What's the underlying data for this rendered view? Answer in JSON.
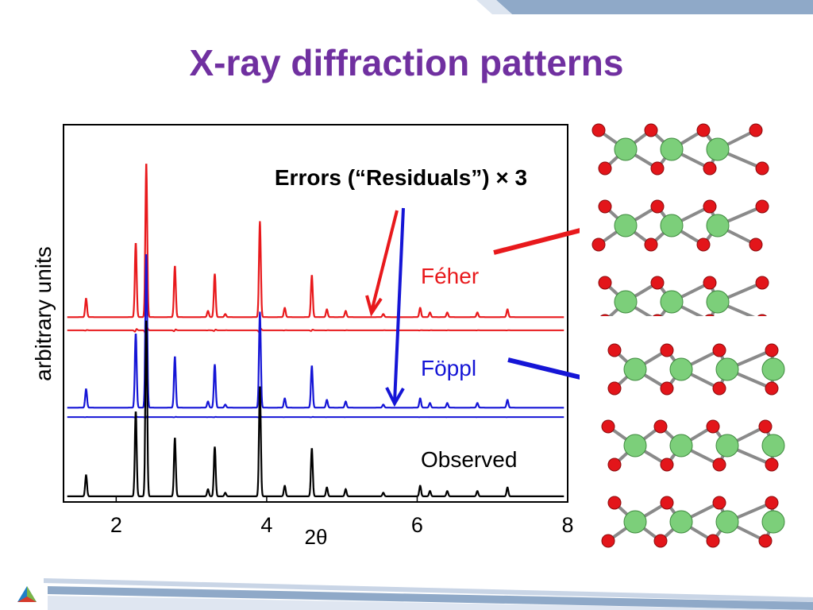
{
  "slide": {
    "title": "X-ray diffraction patterns"
  },
  "chart_data": {
    "type": "line",
    "title": "",
    "xlabel": "2θ",
    "ylabel": "arbitrary units",
    "xlim": [
      1.3,
      8
    ],
    "ylim": [
      0,
      100
    ],
    "xticks": [
      2,
      4,
      6,
      8
    ],
    "grid": false,
    "annotation": "Errors (“Residuals”) × 3",
    "peaks": [
      {
        "x": 1.6,
        "h": 0.12
      },
      {
        "x": 2.26,
        "h": 0.48
      },
      {
        "x": 2.4,
        "h": 1.0
      },
      {
        "x": 2.78,
        "h": 0.33
      },
      {
        "x": 3.22,
        "h": 0.04
      },
      {
        "x": 3.31,
        "h": 0.28
      },
      {
        "x": 3.45,
        "h": 0.02
      },
      {
        "x": 3.91,
        "h": 0.62
      },
      {
        "x": 4.24,
        "h": 0.06
      },
      {
        "x": 4.6,
        "h": 0.27
      },
      {
        "x": 4.8,
        "h": 0.05
      },
      {
        "x": 5.05,
        "h": 0.04
      },
      {
        "x": 5.55,
        "h": 0.02
      },
      {
        "x": 6.04,
        "h": 0.06
      },
      {
        "x": 6.17,
        "h": 0.03
      },
      {
        "x": 6.4,
        "h": 0.03
      },
      {
        "x": 6.8,
        "h": 0.03
      },
      {
        "x": 7.2,
        "h": 0.05
      }
    ],
    "series": [
      {
        "name": "Féher",
        "color": "#e8191c",
        "baseline": 49,
        "scale": 41,
        "residual_baseline": 45.5,
        "residual_amp": 1.2
      },
      {
        "name": "Föppl",
        "color": "#1515d6",
        "baseline": 25,
        "scale": 41,
        "residual_baseline": 22.5,
        "residual_amp": 0.3
      },
      {
        "name": "Observed",
        "color": "#000000",
        "baseline": 1.5,
        "scale": 47
      }
    ]
  }
}
